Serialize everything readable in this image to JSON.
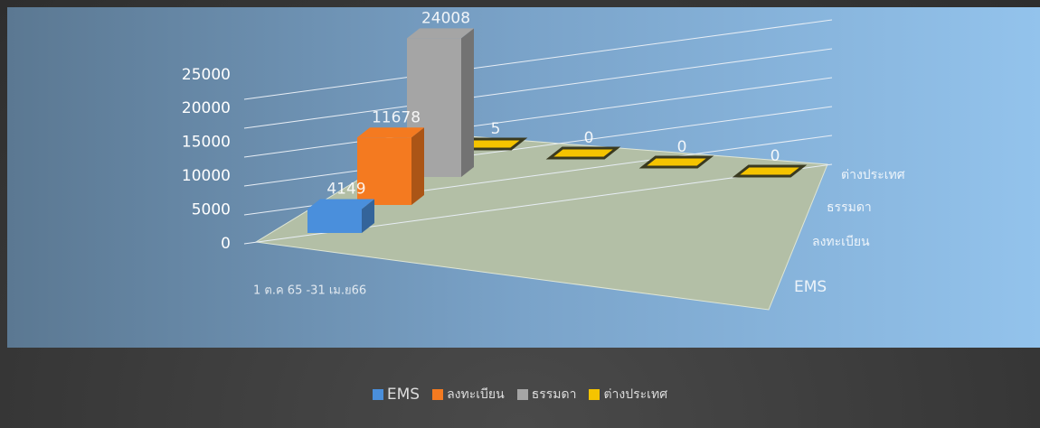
{
  "chart_data": {
    "type": "bar3d",
    "categories": [
      "1 ต.ค 65 -31 เม.ย66",
      null,
      null,
      null
    ],
    "series": [
      {
        "name": "EMS",
        "color": "#4a8fdc",
        "values": [
          4149,
          null,
          null,
          null
        ]
      },
      {
        "name": "ลงทะเบียน",
        "color": "#f47a20",
        "values": [
          11678,
          null,
          null,
          null
        ]
      },
      {
        "name": "ธรรมดา",
        "color": "#a5a5a5",
        "values": [
          24008,
          null,
          null,
          null
        ]
      },
      {
        "name": "ต่างประเทศ",
        "color": "#f5c400",
        "values": [
          5,
          0,
          0,
          0
        ]
      }
    ],
    "ylim": [
      0,
      25000
    ],
    "yticks": [
      0,
      5000,
      10000,
      15000,
      20000,
      25000
    ],
    "grid": true,
    "legend": "bottom"
  }
}
